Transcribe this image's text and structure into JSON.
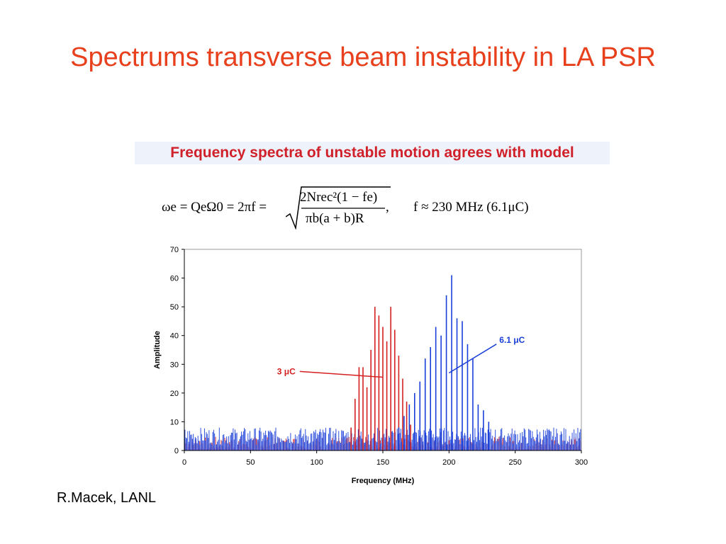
{
  "slide": {
    "title": "Spectrums transverse beam instability in LA PSR",
    "credit": "R.Macek, LANL"
  },
  "figure": {
    "heading": "Frequency spectra of unstable motion agrees with model",
    "formula": {
      "lhs": "ωe = QeΩ0 = 2πf =",
      "numerator": "2Nrec²(1 − fe)",
      "denominator": "πb(a + b)R",
      "comma": ",",
      "rhs": "f ≈ 230 MHz (6.1μC)"
    }
  },
  "colors": {
    "title": "#e8401c",
    "red_series": "#d42020",
    "blue_series": "#1a3fd8",
    "heading": "#d0202a"
  },
  "chart_data": {
    "type": "bar",
    "xlabel": "Frequency (MHz)",
    "ylabel": "Amplitude",
    "xlim": [
      0,
      300
    ],
    "ylim": [
      0,
      70
    ],
    "xticks": [
      0,
      50,
      100,
      150,
      200,
      250,
      300
    ],
    "yticks": [
      0,
      10,
      20,
      30,
      40,
      50,
      60,
      70
    ],
    "grid": false,
    "series": [
      {
        "name": "3 μC",
        "color": "#d42020",
        "x": [
          126,
          129,
          132,
          135,
          138,
          141,
          144,
          147,
          150,
          153,
          156,
          159,
          162,
          165,
          168,
          171
        ],
        "y": [
          8,
          18,
          29,
          29,
          22,
          35,
          50,
          47,
          43,
          38,
          50,
          42,
          33,
          25,
          17,
          9
        ]
      },
      {
        "name": "6.1 μC",
        "color": "#1a3fd8",
        "x": [
          162,
          166,
          170,
          174,
          178,
          182,
          186,
          190,
          194,
          198,
          202,
          206,
          210,
          214,
          218,
          222,
          226,
          230
        ],
        "y": [
          8,
          12,
          16,
          20,
          24,
          32,
          36,
          43,
          40,
          54,
          61,
          46,
          45,
          37,
          32,
          16,
          14,
          10
        ]
      }
    ],
    "noise_floor_max": 8,
    "annotations": [
      {
        "text": "3 μC",
        "x": 84,
        "y": 27.5,
        "arrow_to_x": 150,
        "arrow_to_y": 25.5
      },
      {
        "text": "6.1 μC",
        "x": 238,
        "y": 38.5,
        "arrow_to_x": 200,
        "arrow_to_y": 27
      }
    ]
  }
}
